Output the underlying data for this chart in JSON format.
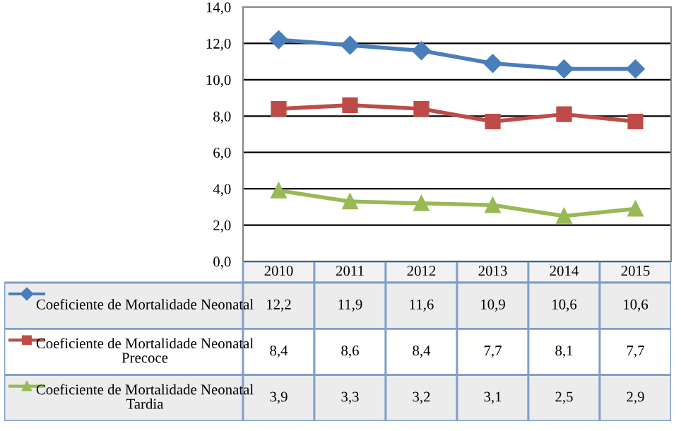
{
  "chart_data": {
    "type": "line",
    "categories": [
      "2010",
      "2011",
      "2012",
      "2013",
      "2014",
      "2015"
    ],
    "series": [
      {
        "name": "Coeficiente de Mortalidade Neonatal",
        "color": "#4a7ebb",
        "marker": "diamond",
        "values": [
          12.2,
          11.9,
          11.6,
          10.9,
          10.6,
          10.6
        ],
        "value_labels": [
          "12,2",
          "11,9",
          "11,6",
          "10,9",
          "10,6",
          "10,6"
        ]
      },
      {
        "name": "Coeficiente de Mortalidade Neonatal Precoce",
        "color": "#be4b48",
        "marker": "square",
        "values": [
          8.4,
          8.6,
          8.4,
          7.7,
          8.1,
          7.7
        ],
        "value_labels": [
          "8,4",
          "8,6",
          "8,4",
          "7,7",
          "8,1",
          "7,7"
        ]
      },
      {
        "name": "Coeficiente de Mortalidade Neonatal Tardia",
        "color": "#98b954",
        "marker": "triangle",
        "values": [
          3.9,
          3.3,
          3.2,
          3.1,
          2.5,
          2.9
        ],
        "value_labels": [
          "3,9",
          "3,3",
          "3,2",
          "3,1",
          "2,5",
          "2,9"
        ]
      }
    ],
    "ylim": [
      0,
      14
    ],
    "yticks": [
      {
        "value": 0,
        "label": "0,0"
      },
      {
        "value": 2,
        "label": "2,0"
      },
      {
        "value": 4,
        "label": "4,0"
      },
      {
        "value": 6,
        "label": "6,0"
      },
      {
        "value": 8,
        "label": "8,0"
      },
      {
        "value": 10,
        "label": "10,0"
      },
      {
        "value": 12,
        "label": "12,0"
      },
      {
        "value": 14,
        "label": "14,0"
      }
    ],
    "grid": "y",
    "legend": "bottom"
  }
}
